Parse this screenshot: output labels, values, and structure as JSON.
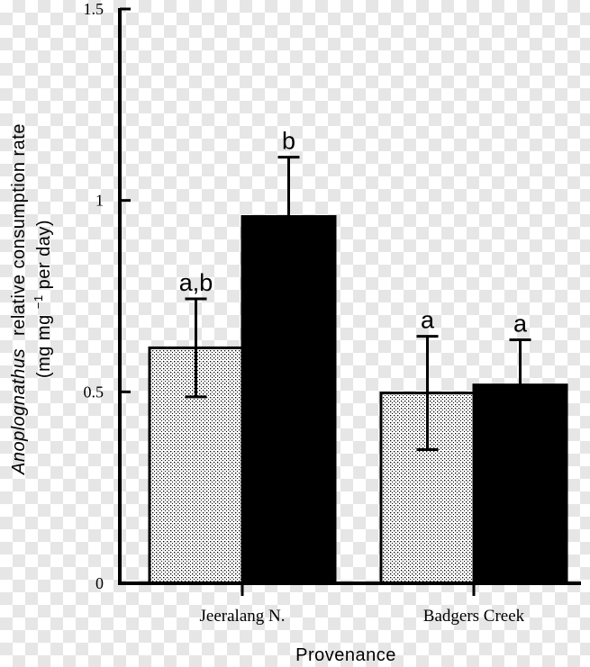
{
  "chart_data": {
    "type": "bar",
    "categories": [
      "Jeeralang N.",
      "Badgers Creek"
    ],
    "series": [
      {
        "values": [
          0.615,
          0.497
        ],
        "errors": [
          0.128,
          0.148
        ],
        "colors": {
          "fill": "#ffffff",
          "dots": "#000000"
        },
        "significance": [
          "a,b",
          "a"
        ]
      },
      {
        "values": [
          0.958,
          0.518
        ],
        "errors": [
          0.155,
          0.118
        ],
        "colors": {
          "fill": "#000000"
        },
        "significance": [
          "b",
          "a"
        ]
      }
    ],
    "ylim": [
      0,
      1.5
    ],
    "yticks": [
      "0",
      "0.5",
      "1",
      "1.5"
    ],
    "ylabel_italic": "Anoplognathus",
    "ylabel_rest": "relative consumption rate",
    "ylabel_units_prefix": "(mg mg",
    "ylabel_units_sup": "−1",
    "ylabel_units_suffix": " per day)",
    "xlabel": "Provenance",
    "grid": false,
    "legend": "none"
  }
}
